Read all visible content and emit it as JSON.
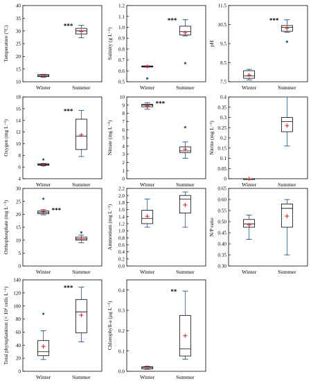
{
  "chart_data": [
    {
      "type": "box",
      "panel": "temperature",
      "ylabel": "Temperature (°C)",
      "ylim": [
        10,
        40
      ],
      "yticks": [
        10,
        15,
        20,
        25,
        30,
        35,
        40
      ],
      "ytick_labels": [
        "10",
        "15",
        "20",
        "25",
        "30",
        "35",
        "40"
      ],
      "categories": [
        "Winter",
        "Summer"
      ],
      "boxes": [
        {
          "q1": 12.0,
          "median": 12.4,
          "q3": 12.8,
          "whisker_low": 11.8,
          "whisker_high": 12.9,
          "mean": 12.3,
          "outliers": []
        },
        {
          "q1": 28.8,
          "median": 30.0,
          "q3": 31.0,
          "whisker_low": 27.3,
          "whisker_high": 32.2,
          "mean": 29.8,
          "outliers": []
        }
      ],
      "significance": {
        "text": "***",
        "category": 1
      }
    },
    {
      "type": "box",
      "panel": "salinity",
      "ylabel": "Salinity (g L⁻¹)",
      "ylim": [
        0.5,
        1.2
      ],
      "yticks": [
        0.5,
        0.6,
        0.7,
        0.8,
        0.9,
        1.0,
        1.1,
        1.2
      ],
      "ytick_labels": [
        "0.5",
        "0.6",
        "0.7",
        "0.8",
        "0.9",
        "1.0",
        "1.1",
        "1.2"
      ],
      "categories": [
        "Winter",
        "Summer"
      ],
      "boxes": [
        {
          "q1": 0.635,
          "median": 0.64,
          "q3": 0.645,
          "whisker_low": 0.635,
          "whisker_high": 0.645,
          "mean": 0.64,
          "outliers": [
            0.53
          ]
        },
        {
          "q1": 0.93,
          "median": 0.96,
          "q3": 1.01,
          "whisker_low": 0.92,
          "whisker_high": 1.07,
          "mean": 0.95,
          "outliers": [
            0.67
          ]
        }
      ],
      "significance": {
        "text": "***",
        "category": 1
      }
    },
    {
      "type": "box",
      "panel": "ph",
      "ylabel": "pH",
      "ylim": [
        7.5,
        11.5
      ],
      "yticks": [
        7.5,
        8.5,
        9.5,
        10.5,
        11.5
      ],
      "ytick_labels": [
        "7.5",
        "8.5",
        "9.5",
        "10.5",
        "11.5"
      ],
      "categories": [
        "Winter",
        "Summer"
      ],
      "boxes": [
        {
          "q1": 7.68,
          "median": 7.8,
          "q3": 8.08,
          "whisker_low": 7.6,
          "whisker_high": 8.15,
          "mean": 7.85,
          "outliers": []
        },
        {
          "q1": 10.15,
          "median": 10.35,
          "q3": 10.45,
          "whisker_low": 10.1,
          "whisker_high": 10.75,
          "mean": 10.3,
          "outliers": [
            9.6
          ]
        }
      ],
      "significance": {
        "text": "***",
        "category": 1
      }
    },
    {
      "type": "box",
      "panel": "oxygen",
      "ylabel": "Oxygen (mg L⁻¹)",
      "ylim": [
        4,
        18
      ],
      "yticks": [
        4,
        6,
        8,
        10,
        12,
        14,
        16,
        18
      ],
      "ytick_labels": [
        "4",
        "6",
        "8",
        "10",
        "12",
        "14",
        "16",
        "18"
      ],
      "categories": [
        "Winter",
        "Summer"
      ],
      "boxes": [
        {
          "q1": 6.3,
          "median": 6.45,
          "q3": 6.55,
          "whisker_low": 6.2,
          "whisker_high": 6.6,
          "mean": 6.4,
          "outliers": [
            7.3
          ]
        },
        {
          "q1": 9.0,
          "median": 11.3,
          "q3": 14.2,
          "whisker_low": 7.8,
          "whisker_high": 15.7,
          "mean": 11.5,
          "outliers": []
        }
      ],
      "significance": {
        "text": "***",
        "category": 1
      }
    },
    {
      "type": "box",
      "panel": "nitrate",
      "ylabel": "Nitrate (mg L⁻¹)",
      "ylim": [
        0,
        10
      ],
      "yticks": [
        0,
        1,
        2,
        3,
        4,
        5,
        6,
        7,
        8,
        9,
        10
      ],
      "ytick_labels": [
        "0",
        "1",
        "2",
        "3",
        "4",
        "5",
        "6",
        "7",
        "8",
        "9",
        "10"
      ],
      "categories": [
        "Winter",
        "Summer"
      ],
      "boxes": [
        {
          "q1": 8.8,
          "median": 9.0,
          "q3": 9.1,
          "whisker_low": 8.5,
          "whisker_high": 9.3,
          "mean": 8.9,
          "outliers": []
        },
        {
          "q1": 3.2,
          "median": 3.4,
          "q3": 3.9,
          "whisker_low": 2.5,
          "whisker_high": 4.5,
          "mean": 3.6,
          "outliers": [
            6.3
          ]
        }
      ],
      "significance": {
        "text": "***",
        "category": 0
      }
    },
    {
      "type": "box",
      "panel": "nitrite",
      "ylabel": "Nitrite (mg L⁻¹)",
      "ylim": [
        0,
        0.4
      ],
      "yticks": [
        0,
        0.05,
        0.1,
        0.15,
        0.2,
        0.25,
        0.3,
        0.35,
        0.4
      ],
      "ytick_labels": [
        "0",
        "0.05",
        "0.1",
        "0.15",
        "0.2",
        "0.25",
        "0.3",
        "0.35",
        "0.4"
      ],
      "categories": [
        "Winter",
        "Summer"
      ],
      "boxes": [
        {
          "q1": 0,
          "median": 0,
          "q3": 0,
          "whisker_low": 0,
          "whisker_high": 0,
          "mean": 0,
          "outliers": []
        },
        {
          "q1": 0.23,
          "median": 0.28,
          "q3": 0.3,
          "whisker_low": 0.16,
          "whisker_high": 0.4,
          "mean": 0.26,
          "outliers": []
        }
      ],
      "significance": null
    },
    {
      "type": "box",
      "panel": "orthophosphate",
      "ylabel": "Orthophosphate (mg L⁻¹)",
      "ylim": [
        0,
        30
      ],
      "yticks": [
        0,
        5,
        10,
        15,
        20,
        25,
        30
      ],
      "ytick_labels": [
        "0",
        "5",
        "10",
        "15",
        "20",
        "25",
        "30"
      ],
      "categories": [
        "Winter",
        "Summer"
      ],
      "boxes": [
        {
          "q1": 20.2,
          "median": 20.8,
          "q3": 21.3,
          "whisker_low": 19.8,
          "whisker_high": 21.8,
          "mean": 21.0,
          "outliers": [
            26.0
          ]
        },
        {
          "q1": 10.0,
          "median": 10.5,
          "q3": 11.2,
          "whisker_low": 9.0,
          "whisker_high": 12.0,
          "mean": 10.5,
          "outliers": [
            13.0
          ]
        }
      ],
      "significance": {
        "text": "***",
        "category": 0
      }
    },
    {
      "type": "box",
      "panel": "ammonium",
      "ylabel": "Ammonium (mg L⁻¹)",
      "ylim": [
        0,
        2.2
      ],
      "yticks": [
        0,
        0.2,
        0.4,
        0.6,
        0.8,
        1.0,
        1.2,
        1.4,
        1.6,
        1.8,
        2.0,
        2.2
      ],
      "ytick_labels": [
        "0.0",
        "0.2",
        "0.4",
        "0.6",
        "0.8",
        "1.0",
        "1.2",
        "1.4",
        "1.6",
        "1.8",
        "2.0",
        "2.2"
      ],
      "categories": [
        "Winter",
        "Summer"
      ],
      "boxes": [
        {
          "q1": 1.2,
          "median": 1.35,
          "q3": 1.58,
          "whisker_low": 1.1,
          "whisker_high": 1.9,
          "mean": 1.41,
          "outliers": []
        },
        {
          "q1": 1.5,
          "median": 1.9,
          "q3": 2.0,
          "whisker_low": 1.1,
          "whisker_high": 2.1,
          "mean": 1.73,
          "outliers": []
        }
      ],
      "significance": null
    },
    {
      "type": "box",
      "panel": "np-ratio",
      "ylabel": "N/P ratio",
      "ylim": [
        0.3,
        0.65
      ],
      "yticks": [
        0.3,
        0.35,
        0.4,
        0.45,
        0.5,
        0.55,
        0.6,
        0.65
      ],
      "ytick_labels": [
        "0.30",
        "0.35",
        "0.40",
        "0.45",
        "0.50",
        "0.55",
        "0.60",
        "0.65"
      ],
      "categories": [
        "Winter",
        "Summer"
      ],
      "boxes": [
        {
          "q1": 0.475,
          "median": 0.49,
          "q3": 0.51,
          "whisker_low": 0.42,
          "whisker_high": 0.53,
          "mean": 0.485,
          "outliers": []
        },
        {
          "q1": 0.475,
          "median": 0.56,
          "q3": 0.58,
          "whisker_low": 0.35,
          "whisker_high": 0.6,
          "mean": 0.525,
          "outliers": []
        }
      ],
      "significance": null
    },
    {
      "type": "box",
      "panel": "total-phytoplankton",
      "ylabel": "Total phytoplankton (× 10³ cells L⁻¹)",
      "ylim": [
        0,
        140
      ],
      "yticks": [
        0,
        20,
        40,
        60,
        80,
        100,
        120,
        140
      ],
      "ytick_labels": [
        "0",
        "20",
        "40",
        "60",
        "80",
        "100",
        "120",
        "140"
      ],
      "categories": [
        "Winter",
        "Summer"
      ],
      "boxes": [
        {
          "q1": 24,
          "median": 30,
          "q3": 47,
          "whisker_low": 18,
          "whisker_high": 62,
          "mean": 38,
          "outliers": [
            88
          ]
        },
        {
          "q1": 59,
          "median": 91,
          "q3": 110,
          "whisker_low": 45,
          "whisker_high": 129,
          "mean": 86,
          "outliers": []
        }
      ],
      "significance": {
        "text": "***",
        "category": 1
      }
    },
    {
      "type": "box",
      "panel": "chlorophyll",
      "ylabel": "Chlorophyll-a (µg L⁻¹)",
      "ylim": [
        0,
        0.45
      ],
      "yticks": [
        0,
        0.1,
        0.2,
        0.3,
        0.4
      ],
      "ytick_labels": [
        "0.0",
        "0.1",
        "0.2",
        "0.3",
        "0.4"
      ],
      "categories": [
        "Winter",
        "Summer"
      ],
      "boxes": [
        {
          "q1": 0.012,
          "median": 0.018,
          "q3": 0.022,
          "whisker_low": 0.01,
          "whisker_high": 0.025,
          "mean": 0.018,
          "outliers": []
        },
        {
          "q1": 0.075,
          "median": 0.11,
          "q3": 0.275,
          "whisker_low": 0.06,
          "whisker_high": 0.395,
          "mean": 0.175,
          "outliers": []
        }
      ],
      "significance": {
        "text": "**",
        "category": 1
      }
    }
  ],
  "colors": {
    "axis": "#000000",
    "box_stroke": "#000000",
    "whisker": "#1f4e9a",
    "outlier": "#2e5aa8",
    "mean_marker": "#e4252b"
  }
}
